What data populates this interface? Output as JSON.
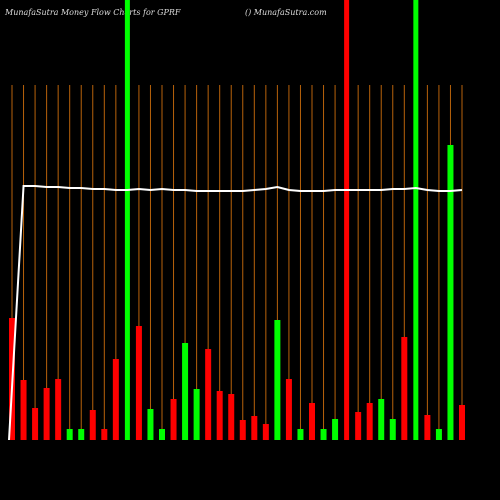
{
  "chart_data": {
    "type": "bar",
    "title": "MunafaSutra  Money Flow  Charts for GPRF",
    "subtitle": "() MunafaSutra.com",
    "categories": [
      null,
      null,
      null,
      null,
      null,
      null,
      null,
      null,
      null,
      null,
      null,
      null,
      null,
      null,
      null,
      null,
      null,
      null,
      null,
      null,
      null,
      null,
      null,
      null,
      null,
      null,
      null,
      null,
      null,
      null,
      null,
      null,
      null,
      null,
      null,
      null,
      null,
      null,
      null,
      null
    ],
    "values": [
      122,
      60,
      32,
      52,
      61,
      11,
      11,
      30,
      11,
      81,
      440,
      114,
      31,
      11,
      41,
      97,
      51,
      91,
      49,
      46,
      20,
      24,
      16,
      120,
      61,
      11,
      37,
      11,
      21,
      440,
      28,
      37,
      41,
      21,
      103,
      440,
      25,
      11,
      295,
      35
    ],
    "colors": [
      "#ff0000",
      "#ff0000",
      "#ff0000",
      "#ff0000",
      "#ff0000",
      "#00ff00",
      "#00ff00",
      "#ff0000",
      "#ff0000",
      "#ff0000",
      "#00ff00",
      "#ff0000",
      "#00ff00",
      "#00ff00",
      "#ff0000",
      "#00ff00",
      "#00ff00",
      "#ff0000",
      "#ff0000",
      "#ff0000",
      "#ff0000",
      "#ff0000",
      "#ff0000",
      "#00ff00",
      "#ff0000",
      "#00ff00",
      "#ff0000",
      "#00ff00",
      "#00ff00",
      "#ff0000",
      "#ff0000",
      "#ff0000",
      "#00ff00",
      "#00ff00",
      "#ff0000",
      "#00ff00",
      "#ff0000",
      "#00ff00",
      "#00ff00",
      "#ff0000"
    ],
    "line": {
      "color": "#ffffff",
      "values": [
        0,
        254,
        254,
        253,
        253,
        252,
        252,
        251,
        251,
        250,
        250,
        251,
        250,
        251,
        250,
        250,
        249,
        249,
        249,
        249,
        249,
        250,
        251,
        253,
        250,
        249,
        249,
        249,
        250,
        250,
        250,
        250,
        250,
        251,
        251,
        252,
        250,
        249,
        249,
        250
      ]
    },
    "ylim": [
      0,
      440
    ],
    "grid": true,
    "grid_color": "#b8620b"
  }
}
